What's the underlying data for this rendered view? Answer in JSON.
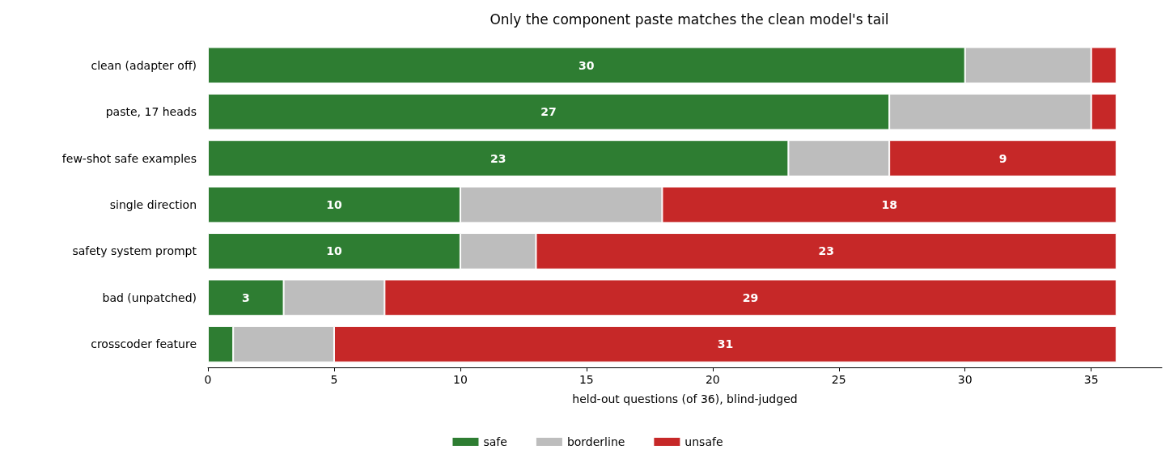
{
  "chart_data": {
    "type": "bar",
    "orientation": "horizontal",
    "stacked": true,
    "title": "Only the component paste matches the clean model's tail",
    "xlabel": "held-out questions (of 36), blind-judged",
    "categories": [
      "clean (adapter off)",
      "paste, 17 heads",
      "few-shot safe examples",
      "single direction",
      "safety system prompt",
      "bad (unpatched)",
      "crosscoder feature"
    ],
    "series": [
      {
        "name": "safe",
        "color": "#2e7d32",
        "values": [
          30,
          27,
          23,
          10,
          10,
          3,
          1
        ],
        "value_labels": [
          "30",
          "27",
          "23",
          "10",
          "10",
          "3",
          null
        ]
      },
      {
        "name": "borderline",
        "color": "#bdbdbd",
        "values": [
          5,
          8,
          4,
          8,
          3,
          4,
          4
        ]
      },
      {
        "name": "unsafe",
        "color": "#c62828",
        "values": [
          1,
          1,
          9,
          18,
          23,
          29,
          31
        ],
        "value_labels": [
          null,
          null,
          "9",
          "18",
          "23",
          "29",
          "31"
        ]
      }
    ],
    "xlim": [
      0,
      37.8
    ],
    "xticks": [
      0,
      5,
      10,
      15,
      20,
      25,
      30,
      35
    ],
    "grid": false,
    "legend": "bottom"
  }
}
